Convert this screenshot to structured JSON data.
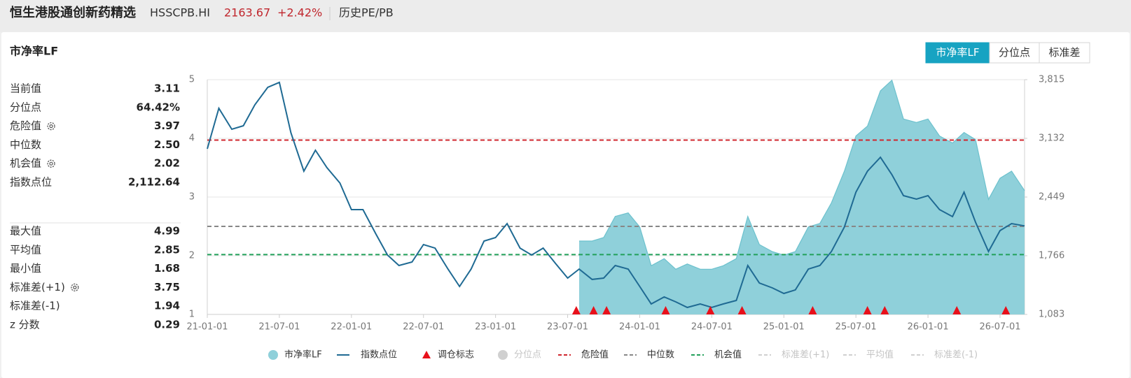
{
  "header": {
    "title": "恒生港股通创新药精选",
    "code": "HSSCPB.HI",
    "price": "2163.67",
    "change": "+2.42%",
    "tab": "历史PE/PB"
  },
  "panel_title": "市净率LF",
  "buttons": [
    "市净率LF",
    "分位点",
    "标准差"
  ],
  "stats_top": [
    {
      "label": "当前值",
      "value": "3.11"
    },
    {
      "label": "分位点",
      "value": "64.42%"
    },
    {
      "label": "危险值",
      "value": "3.97"
    },
    {
      "label": "中位数",
      "value": "2.50"
    },
    {
      "label": "机会值",
      "value": "2.02"
    },
    {
      "label": "指数点位",
      "value": "2,112.64"
    }
  ],
  "stats_bottom": [
    {
      "label": "最大值",
      "value": "4.99"
    },
    {
      "label": "平均值",
      "value": "2.85"
    },
    {
      "label": "最小值",
      "value": "1.68"
    },
    {
      "label": "标准差(+1)",
      "value": "3.75"
    },
    {
      "label": "标准差(-1)",
      "value": "1.94"
    },
    {
      "label": "z 分数",
      "value": "0.29"
    }
  ],
  "chart_data": {
    "type": "area-line",
    "x": [
      2021.0,
      2021.08,
      2021.17,
      2021.25,
      2021.33,
      2021.42,
      2021.5,
      2021.58,
      2021.67,
      2021.75,
      2021.83,
      2021.92,
      2022.0,
      2022.08,
      2022.17,
      2022.25,
      2022.33,
      2022.42,
      2022.5,
      2022.58,
      2022.67,
      2022.75,
      2022.83,
      2022.92,
      2023.0,
      2023.08,
      2023.17,
      2023.25,
      2023.33,
      2023.42,
      2023.5,
      2023.58,
      2023.67,
      2023.75,
      2023.83,
      2023.92,
      2024.0,
      2024.08,
      2024.17,
      2024.25,
      2024.33,
      2024.42,
      2024.5,
      2024.58,
      2024.67,
      2024.75,
      2024.83,
      2024.92,
      2025.0,
      2025.08,
      2025.17,
      2025.25,
      2025.33,
      2025.42,
      2025.5,
      2025.58,
      2025.67,
      2025.75,
      2025.83,
      2025.92,
      2026.0,
      2026.08,
      2026.17,
      2026.25,
      2026.33,
      2026.42,
      2026.5,
      2026.58,
      2026.67
    ],
    "series": [
      {
        "name": "市净率LF",
        "color": "#8fd0da",
        "stroke": "#6cc1cd",
        "values": [
          null,
          null,
          null,
          null,
          null,
          null,
          null,
          null,
          null,
          null,
          null,
          null,
          null,
          null,
          null,
          null,
          null,
          null,
          null,
          null,
          null,
          null,
          null,
          null,
          null,
          null,
          null,
          null,
          null,
          null,
          null,
          2.25,
          2.25,
          2.31,
          2.67,
          2.73,
          2.49,
          1.83,
          1.95,
          1.77,
          1.86,
          1.77,
          1.77,
          1.83,
          1.95,
          2.67,
          2.19,
          2.07,
          2.01,
          2.07,
          2.49,
          2.55,
          2.9,
          3.44,
          4.04,
          4.21,
          4.81,
          4.99,
          4.33,
          4.27,
          4.33,
          4.04,
          3.92,
          4.1,
          3.98,
          2.96,
          3.32,
          3.44,
          3.11
        ]
      },
      {
        "name": "指数点位",
        "color": "#1f6a93",
        "axis": "y2",
        "values": [
          3010,
          3482,
          3238,
          3278,
          3522,
          3726,
          3783,
          3197,
          2750,
          2994,
          2791,
          2612,
          2303,
          2303,
          2018,
          1774,
          1652,
          1693,
          1896,
          1855,
          1611,
          1408,
          1611,
          1937,
          1977,
          2140,
          1855,
          1774,
          1855,
          1668,
          1506,
          1611,
          1490,
          1506,
          1652,
          1611,
          1408,
          1205,
          1286,
          1229,
          1164,
          1205,
          1164,
          1205,
          1246,
          1652,
          1449,
          1392,
          1327,
          1368,
          1611,
          1652,
          1815,
          2099,
          2506,
          2750,
          2912,
          2709,
          2465,
          2425,
          2465,
          2303,
          2221,
          2506,
          2156,
          1815,
          2059,
          2140,
          2113
        ]
      }
    ],
    "markers": {
      "name": "调仓标志",
      "color": "#e8101a",
      "x": [
        2023.56,
        2023.68,
        2023.77,
        2024.18,
        2024.49,
        2024.71,
        2025.2,
        2025.58,
        2025.7,
        2026.2,
        2026.54
      ]
    },
    "reference_lines": [
      {
        "name": "危险值",
        "value": 3.97,
        "color": "#d0262d"
      },
      {
        "name": "中位数",
        "value": 2.5,
        "color": "#878787"
      },
      {
        "name": "机会值",
        "value": 2.02,
        "color": "#22a05a"
      }
    ],
    "hidden_series": [
      {
        "name": "分位点"
      },
      {
        "name": "标准差(+1)"
      },
      {
        "name": "平均值"
      },
      {
        "name": "标准差(-1)"
      }
    ],
    "xlim": [
      2021.0,
      2026.67
    ],
    "xticks": [
      {
        "value": 2021.0,
        "label": "21-01-01"
      },
      {
        "value": 2021.5,
        "label": "21-07-01"
      },
      {
        "value": 2022.0,
        "label": "22-01-01"
      },
      {
        "value": 2022.5,
        "label": "22-07-01"
      },
      {
        "value": 2023.0,
        "label": "23-01-01"
      },
      {
        "value": 2023.5,
        "label": "23-07-01"
      },
      {
        "value": 2024.0,
        "label": "24-01-01"
      },
      {
        "value": 2024.5,
        "label": "24-07-01"
      },
      {
        "value": 2025.0,
        "label": "25-01-01"
      },
      {
        "value": 2025.5,
        "label": "25-07-01"
      },
      {
        "value": 2026.0,
        "label": "26-01-01"
      },
      {
        "value": 2026.5,
        "label": "26-07-01"
      }
    ],
    "ylim": [
      1,
      5
    ],
    "yticks": [
      1,
      2,
      3,
      4,
      5
    ],
    "y2lim": [
      1083,
      3815
    ],
    "y2ticks": [
      {
        "value": 1083,
        "label": "1,083"
      },
      {
        "value": 1766,
        "label": "1,766"
      },
      {
        "value": 2449,
        "label": "2,449"
      },
      {
        "value": 3132,
        "label": "3,132"
      },
      {
        "value": 3815,
        "label": "3,815"
      }
    ],
    "grid": true
  }
}
